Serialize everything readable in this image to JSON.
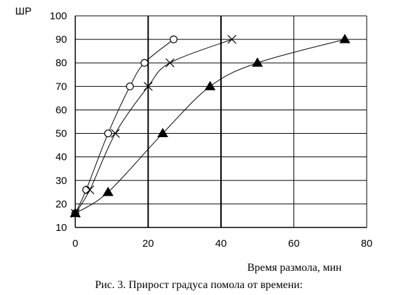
{
  "chart_data": {
    "type": "scatter",
    "ylabel": "ШР",
    "xlabel": "Время размола, мин",
    "caption": "Рис. 3. Прирост градуса помола от времени:",
    "xlim": [
      0,
      80
    ],
    "ylim": [
      10,
      100
    ],
    "xticks": [
      0,
      20,
      40,
      60,
      80
    ],
    "yticks": [
      10,
      20,
      30,
      40,
      50,
      60,
      70,
      80,
      90,
      100
    ],
    "grid": true,
    "series": [
      {
        "marker": "circle",
        "x": [
          0,
          3,
          9,
          15,
          19,
          27
        ],
        "y": [
          16,
          26,
          50,
          70,
          80,
          90
        ]
      },
      {
        "marker": "cross",
        "x": [
          0,
          4,
          11,
          20,
          26,
          43
        ],
        "y": [
          16,
          26,
          50,
          70,
          80,
          90
        ]
      },
      {
        "marker": "triangle",
        "x": [
          0,
          9,
          24,
          37,
          50,
          74
        ],
        "y": [
          16,
          25,
          50,
          70,
          80,
          90
        ]
      }
    ]
  }
}
